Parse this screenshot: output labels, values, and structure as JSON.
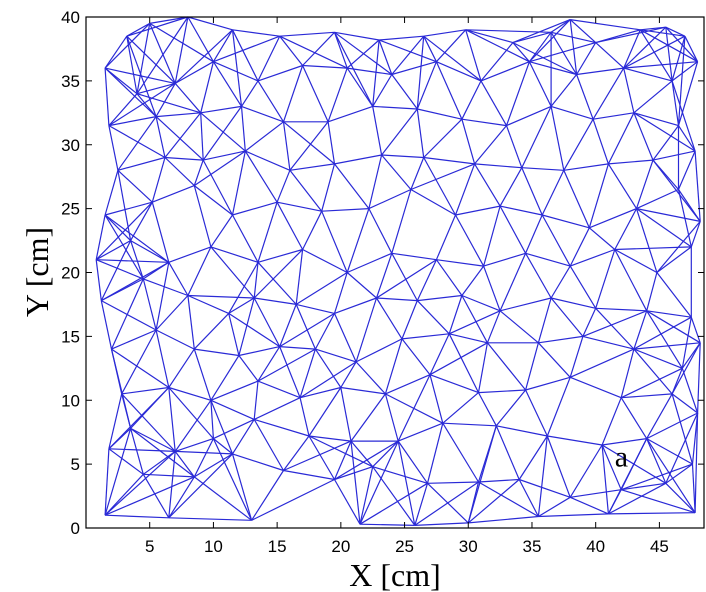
{
  "chart_data": {
    "type": "mesh",
    "title": "",
    "xlabel": "X [cm]",
    "ylabel": "Y [cm]",
    "xlim": [
      0,
      48.5
    ],
    "ylim": [
      0,
      40
    ],
    "xticks": [
      5,
      10,
      15,
      20,
      25,
      30,
      35,
      40,
      45
    ],
    "yticks": [
      0,
      5,
      10,
      15,
      20,
      25,
      30,
      35,
      40
    ],
    "grid": false,
    "edge_color": "#2a2ad6",
    "annotation": {
      "text": "a",
      "x": 41.5,
      "y": 4.8
    },
    "nodes": [
      [
        1.5,
        1.0
      ],
      [
        6.5,
        0.8
      ],
      [
        13.0,
        0.6
      ],
      [
        21.5,
        0.3
      ],
      [
        25.8,
        0.2
      ],
      [
        30.0,
        0.4
      ],
      [
        35.5,
        0.9
      ],
      [
        41.0,
        1.1
      ],
      [
        47.8,
        1.2
      ],
      [
        4.5,
        4.2
      ],
      [
        8.5,
        4.0
      ],
      [
        11.5,
        5.8
      ],
      [
        15.5,
        4.5
      ],
      [
        19.5,
        3.8
      ],
      [
        22.5,
        4.8
      ],
      [
        26.8,
        3.5
      ],
      [
        30.8,
        3.6
      ],
      [
        34.0,
        3.8
      ],
      [
        38.0,
        2.4
      ],
      [
        42.0,
        3.0
      ],
      [
        45.5,
        3.5
      ],
      [
        1.8,
        6.2
      ],
      [
        3.5,
        7.8
      ],
      [
        7.0,
        6.0
      ],
      [
        10.0,
        7.0
      ],
      [
        13.2,
        8.5
      ],
      [
        17.5,
        7.2
      ],
      [
        20.8,
        6.8
      ],
      [
        24.5,
        6.8
      ],
      [
        28.0,
        8.2
      ],
      [
        32.2,
        8.0
      ],
      [
        36.2,
        7.2
      ],
      [
        40.5,
        6.5
      ],
      [
        44.0,
        7.0
      ],
      [
        47.6,
        5.0
      ],
      [
        2.8,
        10.5
      ],
      [
        6.5,
        11.0
      ],
      [
        9.8,
        10.0
      ],
      [
        13.5,
        11.5
      ],
      [
        16.8,
        10.2
      ],
      [
        20.0,
        11.0
      ],
      [
        23.5,
        10.5
      ],
      [
        27.0,
        12.0
      ],
      [
        30.8,
        10.6
      ],
      [
        34.5,
        10.8
      ],
      [
        38.0,
        11.8
      ],
      [
        42.0,
        10.2
      ],
      [
        46.0,
        10.5
      ],
      [
        48.0,
        9.0
      ],
      [
        2.0,
        14.0
      ],
      [
        5.5,
        15.5
      ],
      [
        8.5,
        14.0
      ],
      [
        12.0,
        13.5
      ],
      [
        15.2,
        14.2
      ],
      [
        18.0,
        14.0
      ],
      [
        21.2,
        13.0
      ],
      [
        24.8,
        14.8
      ],
      [
        28.5,
        15.2
      ],
      [
        31.5,
        14.5
      ],
      [
        35.5,
        14.5
      ],
      [
        39.0,
        15.0
      ],
      [
        43.0,
        14.0
      ],
      [
        46.8,
        12.5
      ],
      [
        48.2,
        14.5
      ],
      [
        1.2,
        17.8
      ],
      [
        4.5,
        19.5
      ],
      [
        8.0,
        18.2
      ],
      [
        11.2,
        16.8
      ],
      [
        13.2,
        18.0
      ],
      [
        16.5,
        17.5
      ],
      [
        19.5,
        16.8
      ],
      [
        22.8,
        18.0
      ],
      [
        26.0,
        17.8
      ],
      [
        29.5,
        18.2
      ],
      [
        32.5,
        17.0
      ],
      [
        36.5,
        18.0
      ],
      [
        40.0,
        17.2
      ],
      [
        44.0,
        17.0
      ],
      [
        47.5,
        16.5
      ],
      [
        0.8,
        21.0
      ],
      [
        3.5,
        22.5
      ],
      [
        6.5,
        20.8
      ],
      [
        9.8,
        22.0
      ],
      [
        13.5,
        20.8
      ],
      [
        17.0,
        21.8
      ],
      [
        20.5,
        20.0
      ],
      [
        24.0,
        21.5
      ],
      [
        27.5,
        21.0
      ],
      [
        31.2,
        20.5
      ],
      [
        34.5,
        21.5
      ],
      [
        38.0,
        20.5
      ],
      [
        41.5,
        21.8
      ],
      [
        44.8,
        20.0
      ],
      [
        47.5,
        22.0
      ],
      [
        1.5,
        24.5
      ],
      [
        5.2,
        25.5
      ],
      [
        8.5,
        26.8
      ],
      [
        11.5,
        24.5
      ],
      [
        15.0,
        25.5
      ],
      [
        18.5,
        24.8
      ],
      [
        22.2,
        25.0
      ],
      [
        25.5,
        26.5
      ],
      [
        29.0,
        24.5
      ],
      [
        32.5,
        25.2
      ],
      [
        35.8,
        24.5
      ],
      [
        39.5,
        23.5
      ],
      [
        43.2,
        25.0
      ],
      [
        46.5,
        26.5
      ],
      [
        48.2,
        24.0
      ],
      [
        2.5,
        28.0
      ],
      [
        6.2,
        29.0
      ],
      [
        9.2,
        28.8
      ],
      [
        12.5,
        29.5
      ],
      [
        16.0,
        28.0
      ],
      [
        19.5,
        28.5
      ],
      [
        23.2,
        29.2
      ],
      [
        26.5,
        29.0
      ],
      [
        30.5,
        28.5
      ],
      [
        34.2,
        28.2
      ],
      [
        37.5,
        28.0
      ],
      [
        41.0,
        28.5
      ],
      [
        44.5,
        28.8
      ],
      [
        47.8,
        29.5
      ],
      [
        1.8,
        31.5
      ],
      [
        5.5,
        32.2
      ],
      [
        9.0,
        32.5
      ],
      [
        12.2,
        33.0
      ],
      [
        15.5,
        31.8
      ],
      [
        19.0,
        31.8
      ],
      [
        22.5,
        33.0
      ],
      [
        26.0,
        32.8
      ],
      [
        29.5,
        32.0
      ],
      [
        33.0,
        31.5
      ],
      [
        36.5,
        33.0
      ],
      [
        39.8,
        32.0
      ],
      [
        43.0,
        32.5
      ],
      [
        46.5,
        31.5
      ],
      [
        1.5,
        36.0
      ],
      [
        4.0,
        34.0
      ],
      [
        7.0,
        34.8
      ],
      [
        10.0,
        36.5
      ],
      [
        13.5,
        35.0
      ],
      [
        17.0,
        36.2
      ],
      [
        20.5,
        36.0
      ],
      [
        24.0,
        35.5
      ],
      [
        27.5,
        36.5
      ],
      [
        31.0,
        35.0
      ],
      [
        34.8,
        36.5
      ],
      [
        38.5,
        35.5
      ],
      [
        42.2,
        36.0
      ],
      [
        46.0,
        35.0
      ],
      [
        48.0,
        36.5
      ],
      [
        3.2,
        38.5
      ],
      [
        5.0,
        39.5
      ],
      [
        8.0,
        40.0
      ],
      [
        11.5,
        39.0
      ],
      [
        15.2,
        38.5
      ],
      [
        19.5,
        38.8
      ],
      [
        23.0,
        38.2
      ],
      [
        26.5,
        38.5
      ],
      [
        29.8,
        39.0
      ],
      [
        33.5,
        38.0
      ],
      [
        36.5,
        38.8
      ],
      [
        40.0,
        38.0
      ],
      [
        43.5,
        39.0
      ],
      [
        47.0,
        38.5
      ],
      [
        45.5,
        39.2
      ],
      [
        38.0,
        39.8
      ]
    ]
  }
}
